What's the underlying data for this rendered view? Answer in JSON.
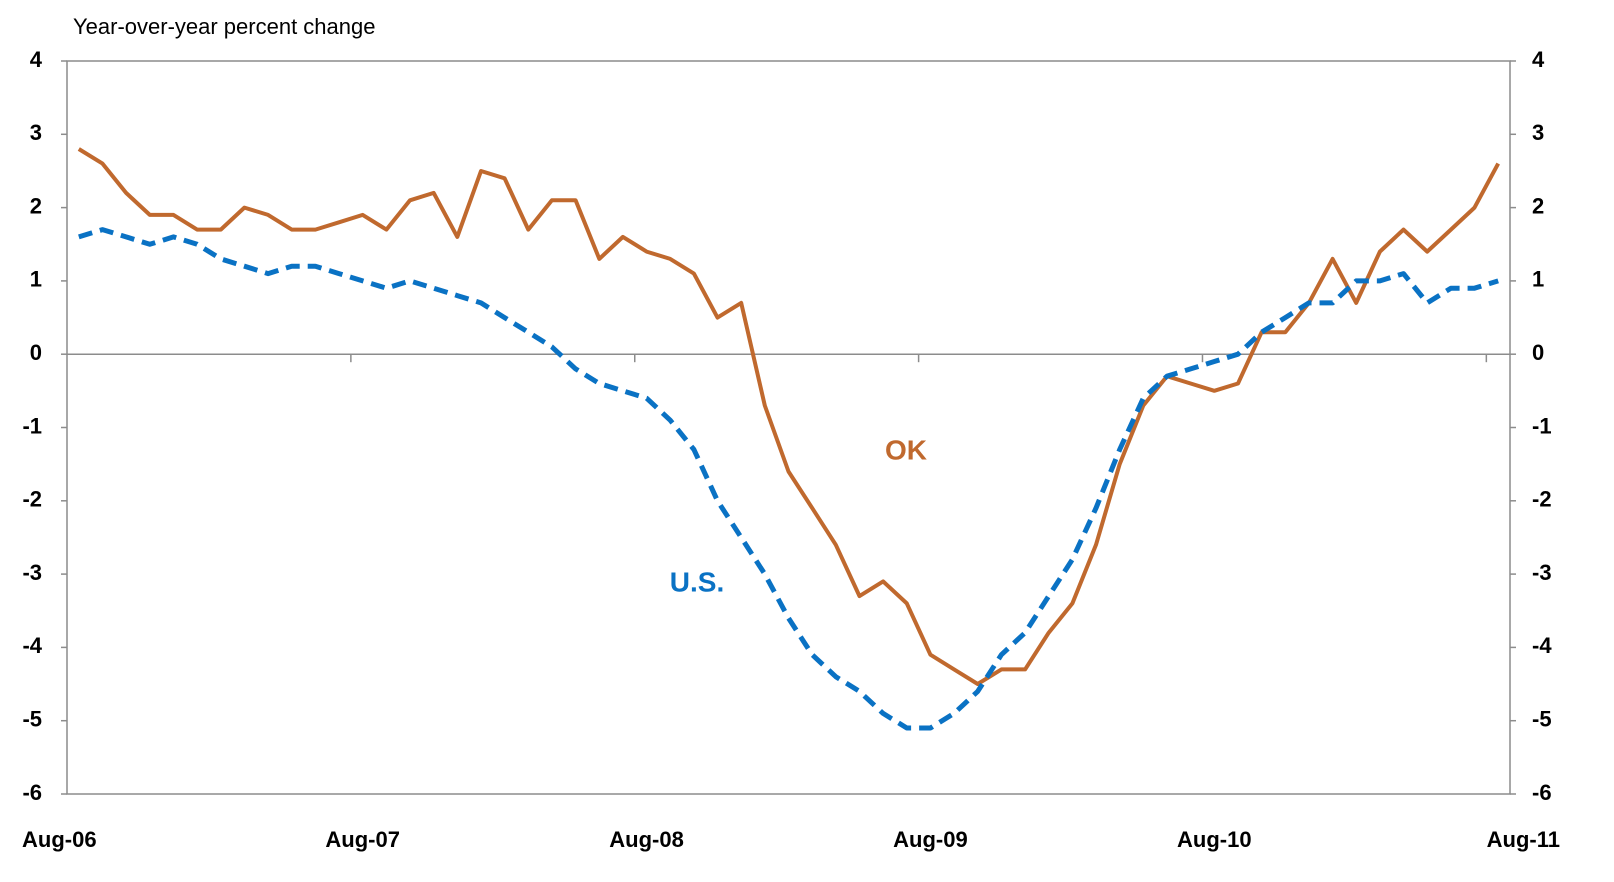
{
  "chart_data": {
    "type": "line",
    "title": "Year-over-year percent change",
    "categories": [
      "Aug-06",
      null,
      null,
      null,
      null,
      null,
      null,
      null,
      null,
      null,
      null,
      null,
      "Aug-07",
      null,
      null,
      null,
      null,
      null,
      null,
      null,
      null,
      null,
      null,
      null,
      "Aug-08",
      null,
      null,
      null,
      null,
      null,
      null,
      null,
      null,
      null,
      null,
      null,
      "Aug-09",
      null,
      null,
      null,
      null,
      null,
      null,
      null,
      null,
      null,
      null,
      null,
      "Aug-10",
      null,
      null,
      null,
      null,
      null,
      null,
      null,
      null,
      null,
      null,
      null,
      "Aug-11"
    ],
    "series": [
      {
        "name": "OK",
        "color": "#c0692e",
        "dash": false,
        "values": [
          2.8,
          2.6,
          2.2,
          1.9,
          1.9,
          1.7,
          1.7,
          2.0,
          1.9,
          1.7,
          1.7,
          1.8,
          1.9,
          1.7,
          2.1,
          2.2,
          1.6,
          2.5,
          2.4,
          1.7,
          2.1,
          2.1,
          1.3,
          1.6,
          1.4,
          1.3,
          1.1,
          0.5,
          0.7,
          -0.7,
          -1.6,
          -2.1,
          -2.6,
          -3.3,
          -3.1,
          -3.4,
          -4.1,
          -4.3,
          -4.5,
          -4.3,
          -4.3,
          -3.8,
          -3.4,
          -2.6,
          -1.5,
          -0.7,
          -0.3,
          -0.4,
          -0.5,
          -0.4,
          0.3,
          0.3,
          0.7,
          1.3,
          0.7,
          1.4,
          1.7,
          1.4,
          1.7,
          2.0,
          2.6
        ]
      },
      {
        "name": "U.S.",
        "color": "#0a72c4",
        "dash": true,
        "values": [
          1.6,
          1.7,
          1.6,
          1.5,
          1.6,
          1.5,
          1.3,
          1.2,
          1.1,
          1.2,
          1.2,
          1.1,
          1.0,
          0.9,
          1.0,
          0.9,
          0.8,
          0.7,
          0.5,
          0.3,
          0.1,
          -0.2,
          -0.4,
          -0.5,
          -0.6,
          -0.9,
          -1.3,
          -2.0,
          -2.5,
          -3.0,
          -3.6,
          -4.1,
          -4.4,
          -4.6,
          -4.9,
          -5.1,
          -5.1,
          -4.9,
          -4.6,
          -4.1,
          -3.8,
          -3.3,
          -2.8,
          -2.1,
          -1.3,
          -0.6,
          -0.3,
          -0.2,
          -0.1,
          0.0,
          0.3,
          0.5,
          0.7,
          0.7,
          1.0,
          1.0,
          1.1,
          0.7,
          0.9,
          0.9,
          1.0
        ]
      }
    ],
    "ylim": [
      -6,
      4
    ],
    "yticks": [
      -6,
      -5,
      -4,
      -3,
      -2,
      -1,
      0,
      1,
      2,
      3,
      4
    ],
    "y2lim": [
      -6,
      4
    ],
    "y2ticks": [
      -6,
      -5,
      -4,
      -3,
      -2,
      -1,
      0,
      1,
      2,
      3,
      4
    ],
    "grid": false
  }
}
